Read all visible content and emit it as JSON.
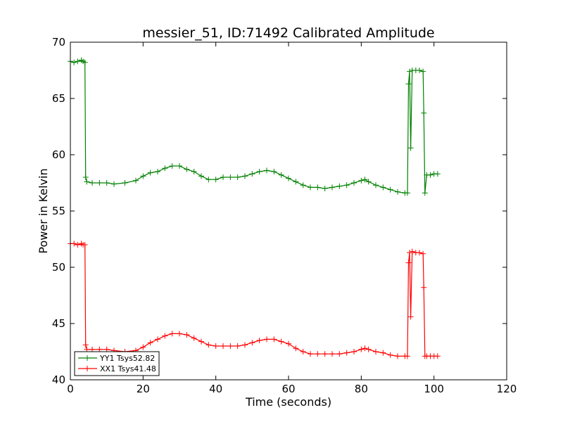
{
  "chart_data": {
    "type": "line",
    "title": "messier_51, ID:71492 Calibrated Amplitude",
    "xlabel": "Time (seconds)",
    "ylabel": "Power in Kelvin",
    "xlim": [
      0,
      120
    ],
    "ylim": [
      40,
      70
    ],
    "xticks": [
      0,
      20,
      40,
      60,
      80,
      100,
      120
    ],
    "yticks": [
      40,
      45,
      50,
      55,
      60,
      65,
      70
    ],
    "grid": false,
    "legend_position": "lower-left",
    "marker": "+",
    "series": [
      {
        "name": "YY1 Tsys52.82",
        "color": "#008000",
        "x": [
          0,
          1,
          2,
          3,
          3.5,
          4,
          4.2,
          4.5,
          6,
          8,
          10,
          12,
          15,
          18,
          20,
          22,
          24,
          26,
          28,
          30,
          32,
          34,
          36,
          38,
          40,
          42,
          44,
          46,
          48,
          50,
          52,
          54,
          56,
          58,
          60,
          62,
          64,
          66,
          68,
          70,
          72,
          74,
          76,
          78,
          80,
          81,
          82,
          84,
          86,
          88,
          90,
          92,
          92.7,
          93,
          93.3,
          93.6,
          94,
          95,
          96,
          97,
          97.2,
          97.5,
          98,
          99,
          100,
          101
        ],
        "values": [
          68.3,
          68.2,
          68.3,
          68.4,
          68.3,
          68.2,
          58.0,
          57.6,
          57.5,
          57.5,
          57.5,
          57.4,
          57.5,
          57.7,
          58.1,
          58.4,
          58.5,
          58.8,
          59.0,
          59.0,
          58.7,
          58.5,
          58.1,
          57.8,
          57.8,
          58.0,
          58.0,
          58.0,
          58.1,
          58.3,
          58.5,
          58.6,
          58.5,
          58.2,
          57.9,
          57.6,
          57.3,
          57.1,
          57.1,
          57.0,
          57.1,
          57.2,
          57.3,
          57.5,
          57.7,
          57.8,
          57.6,
          57.3,
          57.1,
          56.9,
          56.7,
          56.6,
          56.6,
          66.3,
          67.4,
          60.6,
          67.5,
          67.5,
          67.5,
          67.4,
          63.7,
          56.6,
          58.2,
          58.2,
          58.3,
          58.3
        ]
      },
      {
        "name": "XX1 Tsys41.48",
        "color": "#ff0000",
        "x": [
          0,
          1,
          2,
          3,
          3.5,
          4,
          4.2,
          4.5,
          6,
          8,
          10,
          12,
          15,
          18,
          20,
          22,
          24,
          26,
          28,
          30,
          32,
          34,
          36,
          38,
          40,
          42,
          44,
          46,
          48,
          50,
          52,
          54,
          56,
          58,
          60,
          62,
          64,
          66,
          68,
          70,
          72,
          74,
          76,
          78,
          80,
          81,
          82,
          84,
          86,
          88,
          90,
          92,
          92.7,
          93,
          93.3,
          93.6,
          94,
          95,
          96,
          97,
          97.2,
          97.5,
          98,
          99,
          100,
          101
        ],
        "values": [
          52.1,
          52.1,
          52.0,
          52.1,
          52.0,
          52.0,
          43.1,
          42.7,
          42.7,
          42.7,
          42.7,
          42.6,
          42.5,
          42.6,
          42.9,
          43.3,
          43.6,
          43.9,
          44.1,
          44.1,
          44.0,
          43.7,
          43.4,
          43.1,
          43.0,
          43.0,
          43.0,
          43.0,
          43.1,
          43.3,
          43.5,
          43.6,
          43.6,
          43.4,
          43.2,
          42.8,
          42.5,
          42.3,
          42.3,
          42.3,
          42.3,
          42.3,
          42.4,
          42.5,
          42.7,
          42.8,
          42.7,
          42.5,
          42.4,
          42.2,
          42.1,
          42.1,
          42.1,
          50.4,
          51.3,
          45.6,
          51.4,
          51.3,
          51.3,
          51.2,
          48.2,
          42.1,
          42.1,
          42.1,
          42.1,
          42.1
        ]
      }
    ]
  }
}
